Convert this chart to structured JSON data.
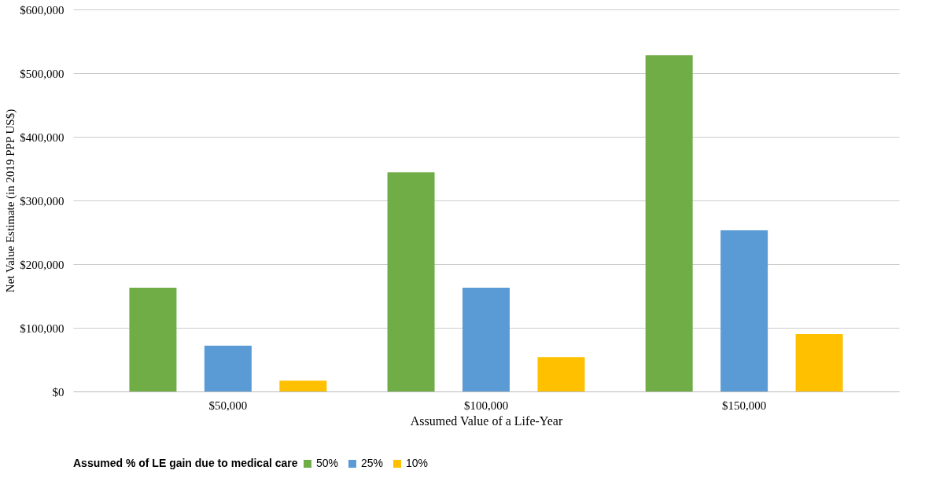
{
  "chart_data": {
    "type": "bar",
    "xlabel": "Assumed Value of a Life-Year",
    "ylabel": "Net Value Estimate (in 2019 PPP US$)",
    "legend_title": "Assumed % of LE gain due to medical care",
    "categories": [
      "$50,000",
      "$100,000",
      "$150,000"
    ],
    "series": [
      {
        "name": "50%",
        "color": "#70ad47",
        "values": [
          163000,
          344000,
          528000
        ]
      },
      {
        "name": "25%",
        "color": "#5b9bd5",
        "values": [
          72000,
          163000,
          253000
        ]
      },
      {
        "name": "10%",
        "color": "#ffc000",
        "values": [
          17000,
          54000,
          90000
        ]
      }
    ],
    "ylim": [
      0,
      600000
    ],
    "yticks": [
      {
        "value": 0,
        "label": "$0"
      },
      {
        "value": 100000,
        "label": "$100,000"
      },
      {
        "value": 200000,
        "label": "$200,000"
      },
      {
        "value": 300000,
        "label": "$300,000"
      },
      {
        "value": 400000,
        "label": "$400,000"
      },
      {
        "value": 500000,
        "label": "$500,000"
      },
      {
        "value": 600000,
        "label": "$600,000"
      }
    ],
    "grid": "y",
    "legend": "bottom left"
  }
}
